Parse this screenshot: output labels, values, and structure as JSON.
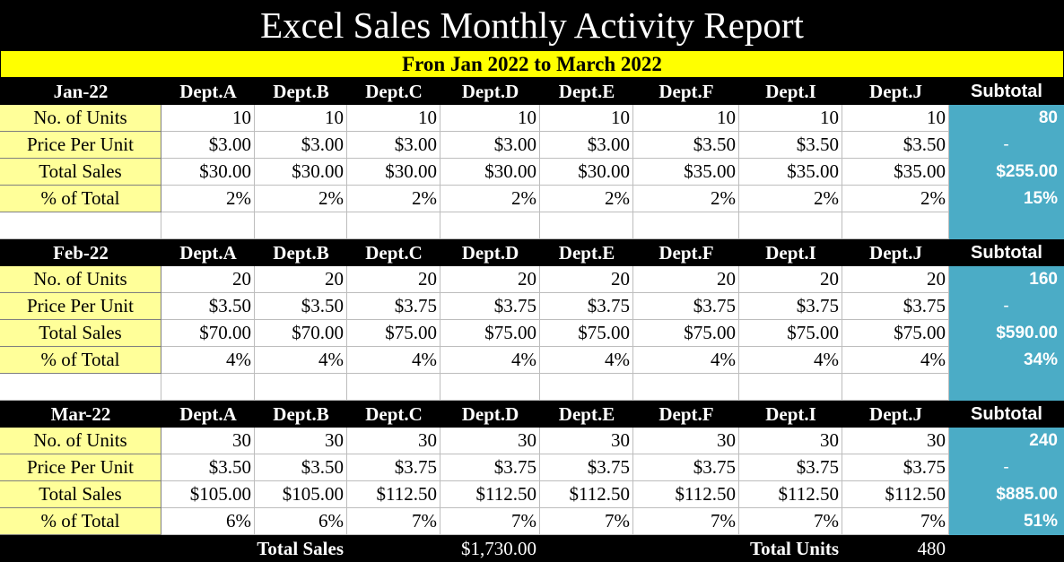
{
  "title": "Excel Sales Monthly Activity Report",
  "subtitle": "Fron Jan 2022 to March 2022",
  "departments": [
    "Dept.A",
    "Dept.B",
    "Dept.C",
    "Dept.D",
    "Dept.E",
    "Dept.F",
    "Dept.I",
    "Dept.J"
  ],
  "subtotal_label": "Subtotal",
  "row_labels": [
    "No. of Units",
    "Price Per Unit",
    "Total Sales",
    "% of Total"
  ],
  "months": [
    {
      "name": "Jan-22",
      "units": [
        "10",
        "10",
        "10",
        "10",
        "10",
        "10",
        "10",
        "10"
      ],
      "price": [
        "$3.00",
        "$3.00",
        "$3.00",
        "$3.00",
        "$3.00",
        "$3.50",
        "$3.50",
        "$3.50"
      ],
      "sales": [
        "$30.00",
        "$30.00",
        "$30.00",
        "$30.00",
        "$30.00",
        "$35.00",
        "$35.00",
        "$35.00"
      ],
      "pct": [
        "2%",
        "2%",
        "2%",
        "2%",
        "2%",
        "2%",
        "2%",
        "2%"
      ],
      "subtotals": [
        "80",
        "-",
        "$255.00",
        "15%"
      ]
    },
    {
      "name": "Feb-22",
      "units": [
        "20",
        "20",
        "20",
        "20",
        "20",
        "20",
        "20",
        "20"
      ],
      "price": [
        "$3.50",
        "$3.50",
        "$3.75",
        "$3.75",
        "$3.75",
        "$3.75",
        "$3.75",
        "$3.75"
      ],
      "sales": [
        "$70.00",
        "$70.00",
        "$75.00",
        "$75.00",
        "$75.00",
        "$75.00",
        "$75.00",
        "$75.00"
      ],
      "pct": [
        "4%",
        "4%",
        "4%",
        "4%",
        "4%",
        "4%",
        "4%",
        "4%"
      ],
      "subtotals": [
        "160",
        "-",
        "$590.00",
        "34%"
      ]
    },
    {
      "name": "Mar-22",
      "units": [
        "30",
        "30",
        "30",
        "30",
        "30",
        "30",
        "30",
        "30"
      ],
      "price": [
        "$3.50",
        "$3.50",
        "$3.75",
        "$3.75",
        "$3.75",
        "$3.75",
        "$3.75",
        "$3.75"
      ],
      "sales": [
        "$105.00",
        "$105.00",
        "$112.50",
        "$112.50",
        "$112.50",
        "$112.50",
        "$112.50",
        "$112.50"
      ],
      "pct": [
        "6%",
        "6%",
        "7%",
        "7%",
        "7%",
        "7%",
        "7%",
        "7%"
      ],
      "subtotals": [
        "240",
        "-",
        "$885.00",
        "51%"
      ]
    }
  ],
  "footer": {
    "total_sales_label": "Total Sales",
    "total_sales_value": "$1,730.00",
    "total_units_label": "Total Units",
    "total_units_value": "480"
  },
  "colors": {
    "header_bg": "#000000",
    "subtitle_bg": "#ffff00",
    "label_bg": "#ffff99",
    "subtotal_bg": "#4bacc6"
  }
}
